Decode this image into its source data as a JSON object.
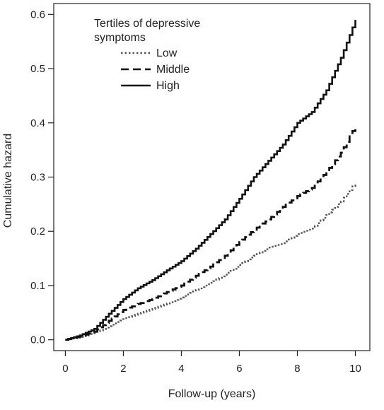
{
  "chart_data": {
    "type": "line",
    "xlabel": "Follow-up (years)",
    "ylabel": "Cumulative hazard",
    "xlim": [
      -0.4,
      10.5
    ],
    "ylim": [
      -0.02,
      0.62
    ],
    "xticks": [
      "0",
      "2",
      "4",
      "6",
      "8",
      "10"
    ],
    "yticks": [
      "0.0",
      "0.1",
      "0.2",
      "0.3",
      "0.4",
      "0.5",
      "0.6"
    ],
    "legend": {
      "title_lines": [
        "Tertiles of depressive",
        "symptoms"
      ],
      "placement": "top-left"
    },
    "series": [
      {
        "name": "Low",
        "style": "dotted",
        "color": "#555555",
        "x": [
          0,
          0.5,
          1,
          1.5,
          2,
          2.5,
          3,
          3.5,
          4,
          4.5,
          5,
          5.5,
          6,
          6.5,
          7,
          7.5,
          8,
          8.5,
          9,
          9.5,
          10
        ],
        "y": [
          0,
          0.005,
          0.012,
          0.025,
          0.038,
          0.048,
          0.057,
          0.067,
          0.078,
          0.092,
          0.105,
          0.12,
          0.138,
          0.155,
          0.17,
          0.178,
          0.195,
          0.205,
          0.23,
          0.255,
          0.29
        ]
      },
      {
        "name": "Middle",
        "style": "dashed",
        "color": "#111111",
        "x": [
          0,
          0.5,
          1,
          1.5,
          2,
          2.5,
          3,
          3.5,
          4,
          4.5,
          5,
          5.5,
          6,
          6.5,
          7,
          7.5,
          8,
          8.5,
          9,
          9.5,
          10
        ],
        "y": [
          0,
          0.006,
          0.015,
          0.035,
          0.055,
          0.066,
          0.075,
          0.088,
          0.1,
          0.118,
          0.135,
          0.155,
          0.18,
          0.203,
          0.222,
          0.245,
          0.265,
          0.28,
          0.31,
          0.345,
          0.395
        ]
      },
      {
        "name": "High",
        "style": "solid",
        "color": "#111111",
        "x": [
          0,
          0.5,
          1,
          1.5,
          2,
          2.5,
          3,
          3.5,
          4,
          4.5,
          5,
          5.5,
          6,
          6.5,
          7,
          7.5,
          8,
          8.5,
          9,
          9.5,
          10
        ],
        "y": [
          0,
          0.008,
          0.02,
          0.048,
          0.075,
          0.095,
          0.11,
          0.128,
          0.145,
          0.168,
          0.195,
          0.222,
          0.26,
          0.3,
          0.33,
          0.36,
          0.4,
          0.42,
          0.46,
          0.52,
          0.59
        ]
      }
    ]
  }
}
